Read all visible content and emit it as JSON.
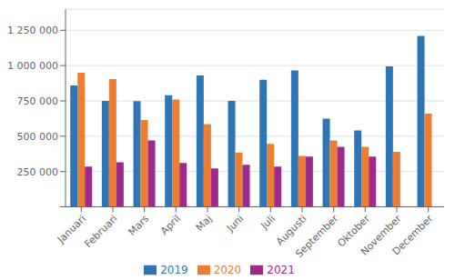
{
  "chart_data": {
    "type": "bar",
    "categories": [
      "Januari",
      "Februari",
      "Mars",
      "April",
      "Maj",
      "Juni",
      "Juli",
      "Augusti",
      "September",
      "Oktober",
      "November",
      "December"
    ],
    "series": [
      {
        "name": "2019",
        "color": "#2e75b6",
        "values": [
          860000,
          750000,
          748000,
          790000,
          930000,
          750000,
          900000,
          965000,
          625000,
          540000,
          995000,
          1210000
        ]
      },
      {
        "name": "2020",
        "color": "#ed7d31",
        "values": [
          950000,
          905000,
          615000,
          760000,
          585000,
          385000,
          445000,
          360000,
          470000,
          425000,
          390000,
          660000
        ]
      },
      {
        "name": "2021",
        "color": "#9e2a8d",
        "values": [
          285000,
          315000,
          470000,
          310000,
          272000,
          298000,
          285000,
          355000,
          425000,
          355000,
          0,
          0
        ]
      }
    ],
    "ylim": [
      0,
      1400000
    ],
    "yticks": [
      {
        "value": 0,
        "label": ""
      },
      {
        "value": 250000,
        "label": "250 000"
      },
      {
        "value": 500000,
        "label": "500 000"
      },
      {
        "value": 750000,
        "label": "750 000"
      },
      {
        "value": 1000000,
        "label": "1 000 000"
      },
      {
        "value": 1250000,
        "label": "1 250 000"
      }
    ],
    "grid": true,
    "legend": "bottom"
  }
}
